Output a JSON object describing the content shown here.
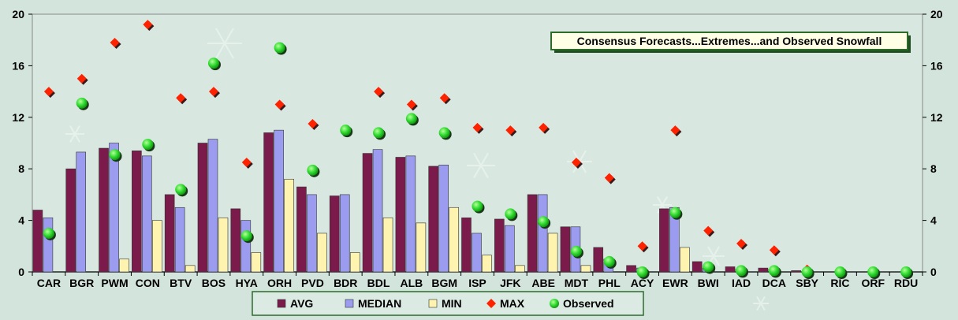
{
  "chart_data": {
    "type": "bar",
    "title": "Consensus Forecasts...Extremes...and Observed Snowfall",
    "categories": [
      "CAR",
      "BGR",
      "PWM",
      "CON",
      "BTV",
      "BOS",
      "HYA",
      "ORH",
      "PVD",
      "BDR",
      "BDL",
      "ALB",
      "BGM",
      "ISP",
      "JFK",
      "ABE",
      "MDT",
      "PHL",
      "ACY",
      "EWR",
      "BWI",
      "IAD",
      "DCA",
      "SBY",
      "RIC",
      "ORF",
      "RDU"
    ],
    "series": [
      {
        "name": "AVG",
        "kind": "bar",
        "color": "#7b1b4b",
        "values": [
          4.8,
          8.0,
          9.6,
          9.4,
          6.0,
          10.0,
          4.9,
          10.8,
          6.6,
          5.9,
          9.2,
          8.9,
          8.2,
          4.2,
          4.1,
          6.0,
          3.5,
          1.9,
          0.5,
          4.9,
          0.8,
          0.4,
          0.3,
          0.1,
          0,
          0,
          0
        ]
      },
      {
        "name": "MEDIAN",
        "kind": "bar",
        "color": "#9b9bef",
        "values": [
          4.2,
          9.3,
          10.0,
          9.0,
          5.0,
          10.3,
          4.0,
          11.0,
          6.0,
          6.0,
          9.5,
          9.0,
          8.3,
          3.0,
          3.6,
          6.0,
          3.5,
          1.0,
          0.3,
          5.0,
          0.3,
          0.2,
          0.2,
          0,
          0,
          0,
          0
        ]
      },
      {
        "name": "MIN",
        "kind": "bar",
        "color": "#fff3b0",
        "values": [
          0,
          0,
          1.0,
          4.0,
          0.5,
          4.2,
          1.5,
          7.2,
          3.0,
          1.5,
          4.2,
          3.8,
          5.0,
          1.3,
          0.5,
          3.0,
          0.5,
          0,
          0,
          1.9,
          0,
          0,
          0,
          0,
          0,
          0,
          0
        ]
      },
      {
        "name": "MAX",
        "kind": "diamond",
        "color": "#ff2200",
        "values": [
          14.0,
          15.0,
          17.8,
          19.2,
          13.5,
          14.0,
          8.5,
          13.0,
          11.5,
          null,
          14.0,
          13.0,
          13.5,
          11.2,
          11.0,
          11.2,
          8.5,
          7.3,
          2.0,
          11.0,
          3.2,
          2.2,
          1.7,
          0.2,
          null,
          null,
          null
        ]
      },
      {
        "name": "Observed",
        "kind": "circle",
        "color": "#22dd22",
        "values": [
          3.0,
          13.1,
          9.1,
          9.9,
          6.4,
          16.2,
          2.8,
          17.4,
          7.9,
          11.0,
          10.8,
          11.9,
          10.8,
          5.1,
          4.5,
          3.9,
          1.6,
          0.8,
          0,
          4.6,
          0.4,
          0.1,
          0.1,
          0,
          0,
          0,
          0
        ]
      }
    ],
    "ylim": [
      0,
      20
    ],
    "yticks": [
      0,
      4,
      8,
      12,
      16,
      20
    ],
    "grid": false,
    "secondary_axis": true,
    "legend_position": "bottom"
  }
}
